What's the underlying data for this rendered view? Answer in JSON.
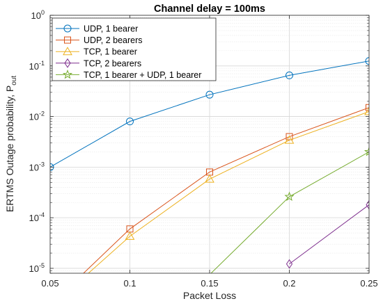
{
  "chart_data": {
    "type": "line",
    "title": "Channel delay = 100ms",
    "xlabel": "Packet Loss",
    "ylabel": "ERTMS Outage probability, P",
    "ylabel_subscript": "out",
    "xscale": "linear",
    "yscale": "log",
    "xlim": [
      0.05,
      0.25
    ],
    "ylim": [
      8e-06,
      1
    ],
    "xticks": [
      "0.05",
      "0.1",
      "0.15",
      "0.2",
      "0.25"
    ],
    "yticks": [
      {
        "base": "10",
        "exp": "0"
      },
      {
        "base": "10",
        "exp": "-1"
      },
      {
        "base": "10",
        "exp": "-2"
      },
      {
        "base": "10",
        "exp": "-3"
      },
      {
        "base": "10",
        "exp": "-4"
      },
      {
        "base": "10",
        "exp": "-5"
      }
    ],
    "grid": true,
    "minor_grid": true,
    "legend_position": "top-left",
    "series": [
      {
        "name": "UDP, 1 bearer",
        "color": "#0072BD",
        "marker": "circle",
        "x": [
          0.05,
          0.1,
          0.15,
          0.2,
          0.25
        ],
        "y": [
          0.001,
          0.008,
          0.027,
          0.065,
          0.125
        ]
      },
      {
        "name": "UDP, 2 bearers",
        "color": "#D95319",
        "marker": "square",
        "x": [
          0.07,
          0.1,
          0.15,
          0.2,
          0.25
        ],
        "y": [
          7.5e-06,
          6e-05,
          0.0008,
          0.004,
          0.015
        ]
      },
      {
        "name": "TCP, 1 bearer",
        "color": "#EDB120",
        "marker": "triangle",
        "x": [
          0.073,
          0.1,
          0.15,
          0.2,
          0.25
        ],
        "y": [
          7.5e-06,
          4.3e-05,
          0.00058,
          0.0034,
          0.0125
        ]
      },
      {
        "name": "TCP, 2 bearers",
        "color": "#7E2F8E",
        "marker": "diamond",
        "x": [
          0.2,
          0.25
        ],
        "y": [
          1.22e-05,
          0.00018
        ]
      },
      {
        "name": "TCP, 1 bearer + UDP, 1 bearer",
        "color": "#77AC30",
        "marker": "star",
        "x": [
          0.15,
          0.2,
          0.25
        ],
        "y": [
          7.5e-06,
          0.00026,
          0.002
        ]
      }
    ]
  }
}
